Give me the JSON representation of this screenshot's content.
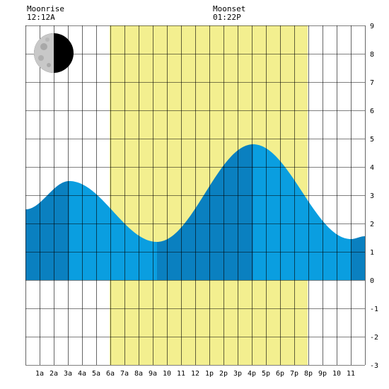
{
  "moonrise": {
    "label": "Moonrise",
    "time": "12:12A"
  },
  "moonset": {
    "label": "Moonset",
    "time": "01:22P"
  },
  "moon_phase_icon": "waning-half-moon-icon",
  "colors": {
    "daylight": "#f3ef8f",
    "tide_light": "#0a9ee0",
    "tide_dark": "#0a80c0",
    "grid": "#000000",
    "background": "#ffffff"
  },
  "chart_data": {
    "type": "area",
    "title": "",
    "xlabel": "",
    "ylabel": "",
    "ylim": [
      -3,
      9
    ],
    "yticks": [
      9,
      8,
      7,
      6,
      5,
      4,
      3,
      2,
      1,
      0,
      -1,
      -2,
      -3
    ],
    "xlim": [
      0,
      24
    ],
    "xtick_labels": [
      "1a",
      "2a",
      "3a",
      "4a",
      "5a",
      "6a",
      "7a",
      "8a",
      "9a",
      "10",
      "11",
      "12",
      "1p",
      "2p",
      "3p",
      "4p",
      "5p",
      "6p",
      "7p",
      "8p",
      "9p",
      "10",
      "11"
    ],
    "daylight_hours": [
      5.95,
      19.95
    ],
    "tide_extremes": [
      {
        "hour": 0.0,
        "height": 2.5
      },
      {
        "hour": 3.1,
        "height": 3.5
      },
      {
        "hour": 9.3,
        "height": 1.35
      },
      {
        "hour": 16.1,
        "height": 4.8
      },
      {
        "hour": 23.0,
        "height": 1.45
      },
      {
        "hour": 24.0,
        "height": 1.55
      }
    ],
    "shade_bands": [
      {
        "from": 0.0,
        "to": 3.1,
        "shade": "dark"
      },
      {
        "from": 3.1,
        "to": 9.3,
        "shade": "light"
      },
      {
        "from": 9.3,
        "to": 16.1,
        "shade": "dark"
      },
      {
        "from": 16.1,
        "to": 23.0,
        "shade": "light"
      },
      {
        "from": 23.0,
        "to": 24.0,
        "shade": "dark"
      }
    ]
  }
}
